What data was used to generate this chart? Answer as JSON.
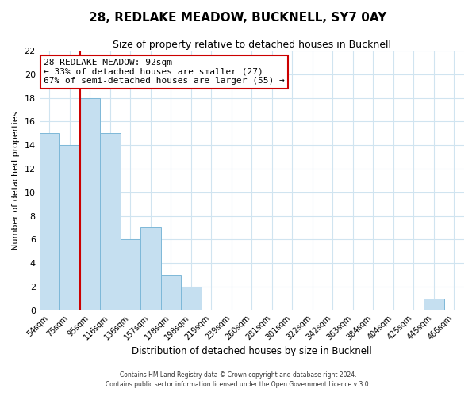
{
  "title": "28, REDLAKE MEADOW, BUCKNELL, SY7 0AY",
  "subtitle": "Size of property relative to detached houses in Bucknell",
  "xlabel": "Distribution of detached houses by size in Bucknell",
  "ylabel": "Number of detached properties",
  "bar_labels": [
    "54sqm",
    "75sqm",
    "95sqm",
    "116sqm",
    "136sqm",
    "157sqm",
    "178sqm",
    "198sqm",
    "219sqm",
    "239sqm",
    "260sqm",
    "281sqm",
    "301sqm",
    "322sqm",
    "342sqm",
    "363sqm",
    "384sqm",
    "404sqm",
    "425sqm",
    "445sqm",
    "466sqm"
  ],
  "bar_values": [
    15,
    14,
    18,
    15,
    6,
    7,
    3,
    2,
    0,
    0,
    0,
    0,
    0,
    0,
    0,
    0,
    0,
    0,
    0,
    1,
    0
  ],
  "bar_color": "#c5dff0",
  "bar_edge_color": "#7db8d8",
  "grid_color": "#d0e4f0",
  "background_color": "#ffffff",
  "property_line_color": "#cc0000",
  "annotation_title": "28 REDLAKE MEADOW: 92sqm",
  "annotation_line1": "← 33% of detached houses are smaller (27)",
  "annotation_line2": "67% of semi-detached houses are larger (55) →",
  "annotation_box_color": "#ffffff",
  "annotation_box_edge_color": "#cc0000",
  "ylim": [
    0,
    22
  ],
  "yticks": [
    0,
    2,
    4,
    6,
    8,
    10,
    12,
    14,
    16,
    18,
    20,
    22
  ],
  "footer_line1": "Contains HM Land Registry data © Crown copyright and database right 2024.",
  "footer_line2": "Contains public sector information licensed under the Open Government Licence v 3.0."
}
